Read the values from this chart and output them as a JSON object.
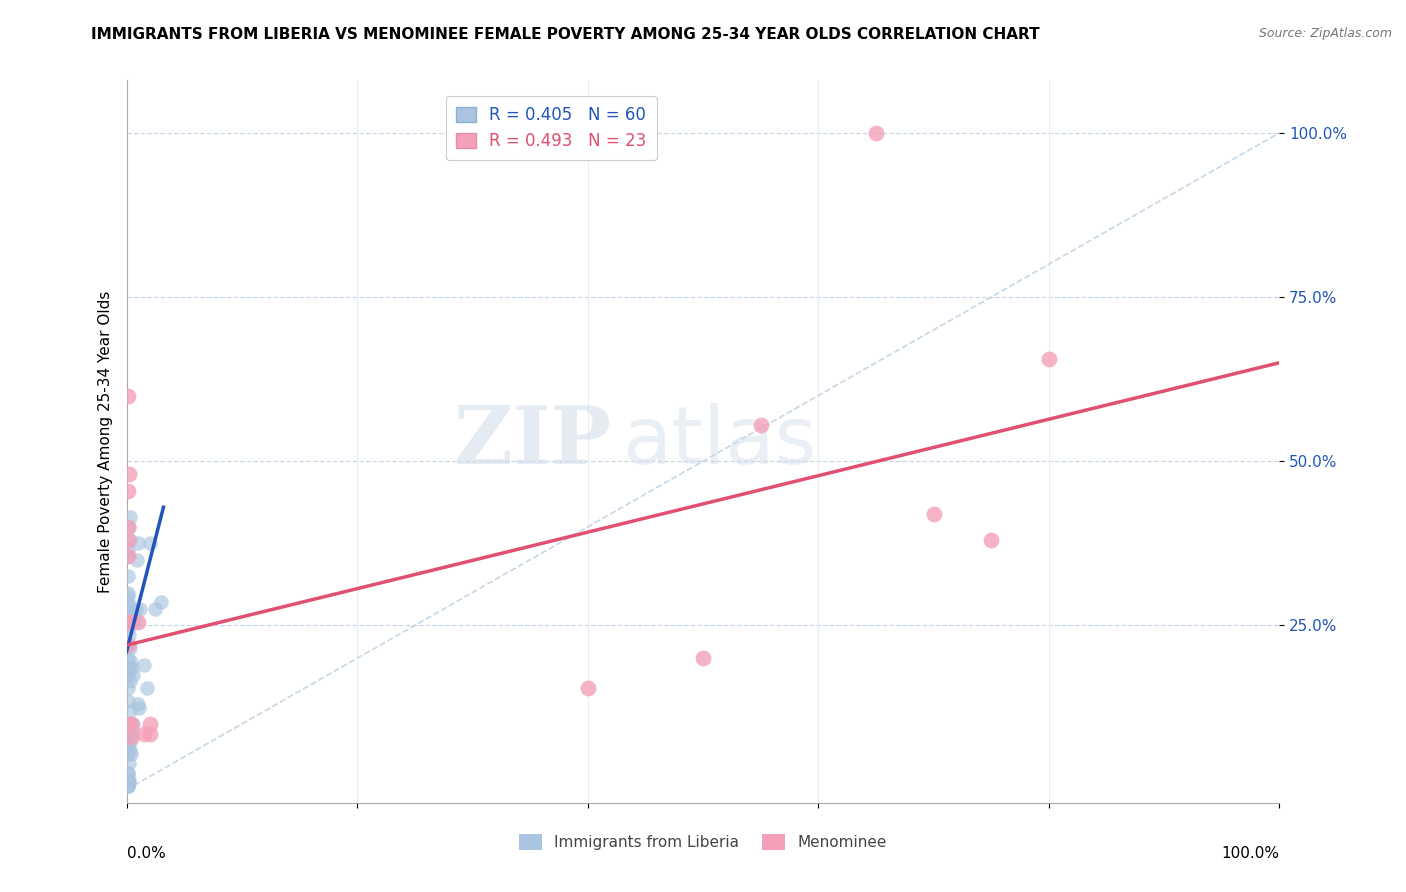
{
  "title": "IMMIGRANTS FROM LIBERIA VS MENOMINEE FEMALE POVERTY AMONG 25-34 YEAR OLDS CORRELATION CHART",
  "source": "Source: ZipAtlas.com",
  "ylabel": "Female Poverty Among 25-34 Year Olds",
  "xlim": [
    0,
    1.0
  ],
  "ylim": [
    -0.02,
    1.08
  ],
  "ytick_positions": [
    0.25,
    0.5,
    0.75,
    1.0
  ],
  "ytick_labels": [
    "25.0%",
    "50.0%",
    "75.0%",
    "100.0%"
  ],
  "watermark_zip": "ZIP",
  "watermark_atlas": "atlas",
  "legend_blue_r": "R = 0.405",
  "legend_blue_n": "N = 60",
  "legend_pink_r": "R = 0.493",
  "legend_pink_n": "N = 23",
  "blue_color": "#a8c4e0",
  "pink_color": "#f4a0b8",
  "blue_line_color": "#2255bb",
  "pink_line_color": "#e05070",
  "blue_scatter": [
    [
      0.001,
      0.2
    ],
    [
      0.002,
      0.22
    ],
    [
      0.001,
      0.3
    ],
    [
      0.001,
      0.355
    ],
    [
      0.003,
      0.38
    ],
    [
      0.002,
      0.4
    ],
    [
      0.003,
      0.415
    ],
    [
      0.002,
      0.185
    ],
    [
      0.001,
      0.155
    ],
    [
      0.001,
      0.1
    ],
    [
      0.002,
      0.085
    ],
    [
      0.001,
      0.055
    ],
    [
      0.003,
      0.12
    ],
    [
      0.004,
      0.075
    ],
    [
      0.005,
      0.09
    ],
    [
      0.006,
      0.1
    ],
    [
      0.004,
      0.055
    ],
    [
      0.003,
      0.06
    ],
    [
      0.002,
      0.04
    ],
    [
      0.001,
      0.025
    ],
    [
      0.001,
      0.015
    ],
    [
      0.001,
      0.005
    ],
    [
      0.002,
      0.01
    ],
    [
      0.001,
      0.28
    ],
    [
      0.005,
      0.27
    ],
    [
      0.007,
      0.255
    ],
    [
      0.008,
      0.275
    ],
    [
      0.009,
      0.35
    ],
    [
      0.01,
      0.375
    ],
    [
      0.012,
      0.275
    ],
    [
      0.01,
      0.13
    ],
    [
      0.011,
      0.125
    ],
    [
      0.005,
      0.185
    ],
    [
      0.006,
      0.175
    ],
    [
      0.004,
      0.195
    ],
    [
      0.003,
      0.215
    ],
    [
      0.001,
      0.175
    ],
    [
      0.001,
      0.135
    ],
    [
      0.001,
      0.085
    ],
    [
      0.001,
      0.025
    ],
    [
      0.001,
      0.015
    ],
    [
      0.001,
      0.005
    ],
    [
      0.002,
      0.015
    ],
    [
      0.001,
      0.285
    ],
    [
      0.015,
      0.19
    ],
    [
      0.018,
      0.155
    ],
    [
      0.02,
      0.375
    ],
    [
      0.025,
      0.275
    ],
    [
      0.03,
      0.285
    ],
    [
      0.001,
      0.325
    ],
    [
      0.001,
      0.265
    ],
    [
      0.001,
      0.245
    ],
    [
      0.001,
      0.365
    ],
    [
      0.001,
      0.295
    ],
    [
      0.002,
      0.235
    ],
    [
      0.003,
      0.165
    ],
    [
      0.001,
      0.065
    ],
    [
      0.001,
      0.005
    ],
    [
      0.001,
      0.22
    ],
    [
      0.001,
      0.27
    ]
  ],
  "pink_scatter": [
    [
      0.001,
      0.6
    ],
    [
      0.001,
      0.4
    ],
    [
      0.001,
      0.455
    ],
    [
      0.001,
      0.38
    ],
    [
      0.001,
      0.355
    ],
    [
      0.001,
      0.22
    ],
    [
      0.001,
      0.255
    ],
    [
      0.002,
      0.48
    ],
    [
      0.003,
      0.255
    ],
    [
      0.003,
      0.1
    ],
    [
      0.004,
      0.1
    ],
    [
      0.004,
      0.08
    ],
    [
      0.01,
      0.255
    ],
    [
      0.015,
      0.085
    ],
    [
      0.02,
      0.085
    ],
    [
      0.02,
      0.1
    ],
    [
      0.4,
      0.155
    ],
    [
      0.5,
      0.2
    ],
    [
      0.55,
      0.555
    ],
    [
      0.65,
      1.0
    ],
    [
      0.7,
      0.42
    ],
    [
      0.75,
      0.38
    ],
    [
      0.8,
      0.655
    ]
  ],
  "blue_trendline_x": [
    0.0,
    0.032
  ],
  "blue_trendline_y": [
    0.21,
    0.43
  ],
  "pink_trendline_x": [
    0.0,
    1.0
  ],
  "pink_trendline_y": [
    0.22,
    0.65
  ],
  "dashed_line_x": [
    0.0,
    1.0
  ],
  "dashed_line_y": [
    0.0,
    1.0
  ]
}
